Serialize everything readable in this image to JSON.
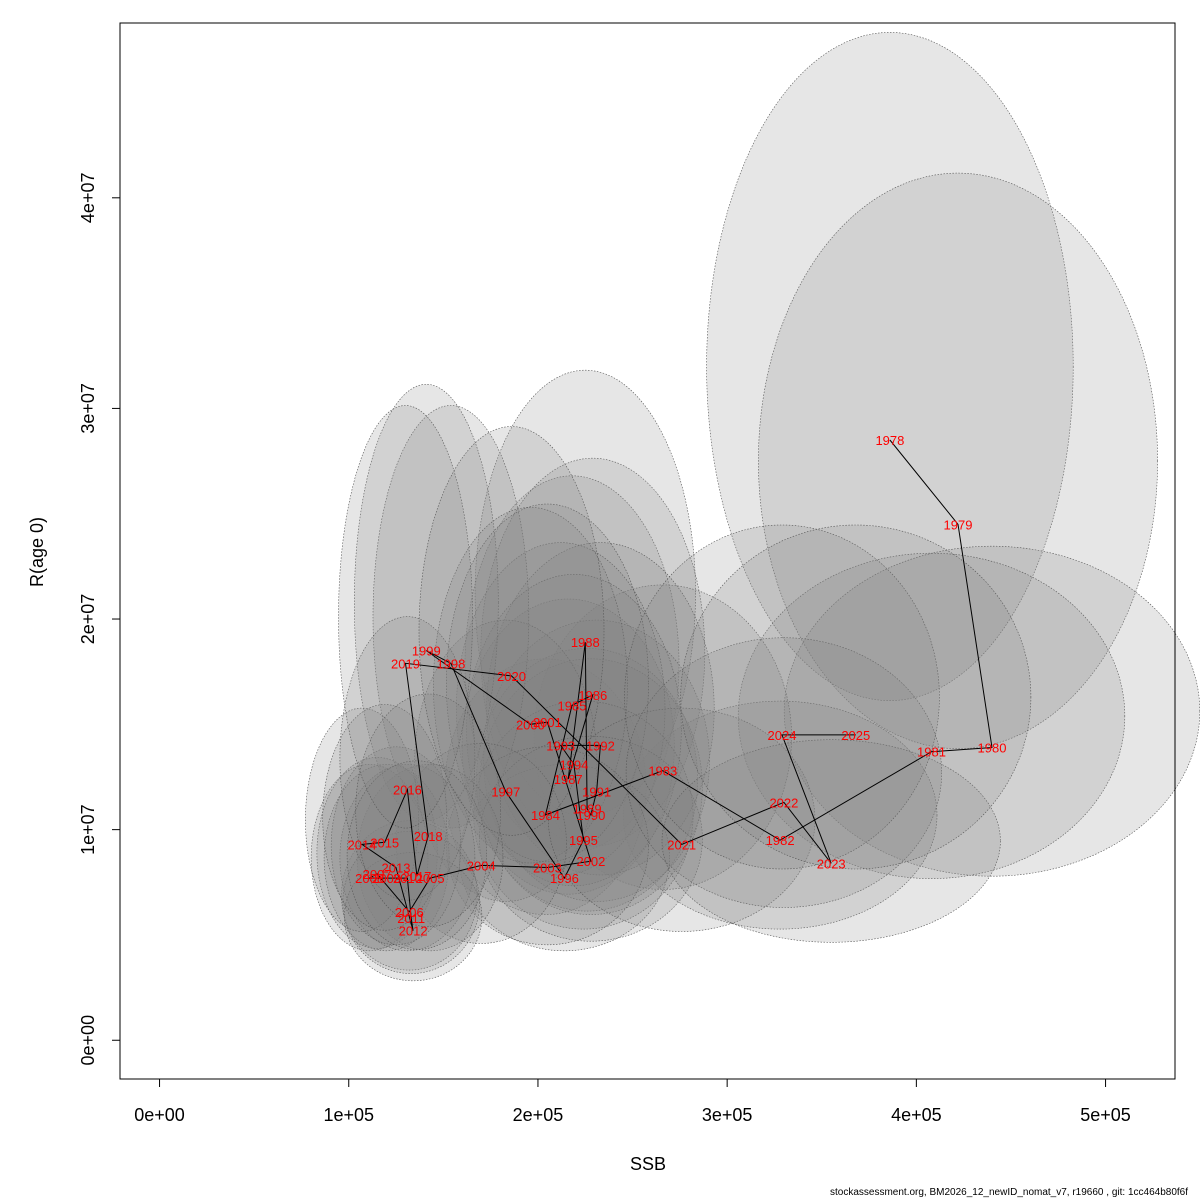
{
  "chart_data": {
    "type": "scatter",
    "xlabel": "SSB",
    "ylabel": "R(age 0)",
    "xlim": [
      -20900,
      536700
    ],
    "ylim": [
      -1840000,
      48300000
    ],
    "x_ticks": [
      0,
      100000,
      200000,
      300000,
      400000,
      500000
    ],
    "x_tick_labels": [
      "0e+00",
      "1e+05",
      "2e+05",
      "3e+05",
      "4e+05",
      "5e+05"
    ],
    "y_ticks": [
      0,
      10000000,
      20000000,
      30000000,
      40000000
    ],
    "y_tick_labels": [
      "0e+00",
      "1e+07",
      "2e+07",
      "3e+07",
      "4e+07"
    ],
    "grid": false,
    "point_color": "#ff0000",
    "line_color": "#000000",
    "ellipse_fill": "#808080",
    "ellipse_stroke": "#555555",
    "points": [
      {
        "year": "1978",
        "ssb": 386000,
        "rec": 28500000
      },
      {
        "year": "1979",
        "ssb": 422000,
        "rec": 24500000
      },
      {
        "year": "1980",
        "ssb": 440000,
        "rec": 13900000
      },
      {
        "year": "1981",
        "ssb": 408000,
        "rec": 13700000
      },
      {
        "year": "1982",
        "ssb": 328000,
        "rec": 9500000
      },
      {
        "year": "1983",
        "ssb": 266000,
        "rec": 12800000
      },
      {
        "year": "1984",
        "ssb": 204000,
        "rec": 10700000
      },
      {
        "year": "1985",
        "ssb": 218000,
        "rec": 15900000
      },
      {
        "year": "1986",
        "ssb": 229000,
        "rec": 16400000
      },
      {
        "year": "1987",
        "ssb": 216000,
        "rec": 12400000
      },
      {
        "year": "1988",
        "ssb": 225000,
        "rec": 18900000
      },
      {
        "year": "1989",
        "ssb": 226000,
        "rec": 11000000
      },
      {
        "year": "1990",
        "ssb": 228000,
        "rec": 10700000
      },
      {
        "year": "1991",
        "ssb": 231000,
        "rec": 11800000
      },
      {
        "year": "1992",
        "ssb": 233000,
        "rec": 14000000
      },
      {
        "year": "1993",
        "ssb": 212000,
        "rec": 14000000
      },
      {
        "year": "1994",
        "ssb": 219000,
        "rec": 13100000
      },
      {
        "year": "1995",
        "ssb": 224000,
        "rec": 9500000
      },
      {
        "year": "1996",
        "ssb": 214000,
        "rec": 7700000
      },
      {
        "year": "1997",
        "ssb": 183000,
        "rec": 11800000
      },
      {
        "year": "1998",
        "ssb": 154000,
        "rec": 17900000
      },
      {
        "year": "1999",
        "ssb": 141000,
        "rec": 18500000
      },
      {
        "year": "2000",
        "ssb": 196000,
        "rec": 15000000
      },
      {
        "year": "2001",
        "ssb": 205000,
        "rec": 15100000
      },
      {
        "year": "2002",
        "ssb": 228000,
        "rec": 8500000
      },
      {
        "year": "2003",
        "ssb": 205000,
        "rec": 8200000
      },
      {
        "year": "2004",
        "ssb": 170000,
        "rec": 8300000
      },
      {
        "year": "2005",
        "ssb": 143000,
        "rec": 7700000
      },
      {
        "year": "2006",
        "ssb": 132000,
        "rec": 6100000
      },
      {
        "year": "2007",
        "ssb": 115000,
        "rec": 7900000
      },
      {
        "year": "2008",
        "ssb": 111000,
        "rec": 7700000
      },
      {
        "year": "2009",
        "ssb": 120000,
        "rec": 7700000
      },
      {
        "year": "2010",
        "ssb": 131000,
        "rec": 7700000
      },
      {
        "year": "2011",
        "ssb": 133000,
        "rec": 5800000
      },
      {
        "year": "2012",
        "ssb": 134000,
        "rec": 5200000
      },
      {
        "year": "2013",
        "ssb": 125000,
        "rec": 8200000
      },
      {
        "year": "2014",
        "ssb": 107000,
        "rec": 9300000
      },
      {
        "year": "2015",
        "ssb": 119000,
        "rec": 9400000
      },
      {
        "year": "2016",
        "ssb": 131000,
        "rec": 11900000
      },
      {
        "year": "2017",
        "ssb": 136000,
        "rec": 7800000
      },
      {
        "year": "2018",
        "ssb": 142000,
        "rec": 9700000
      },
      {
        "year": "2019",
        "ssb": 130000,
        "rec": 17900000
      },
      {
        "year": "2020",
        "ssb": 186000,
        "rec": 17300000
      },
      {
        "year": "2021",
        "ssb": 276000,
        "rec": 9300000
      },
      {
        "year": "2022",
        "ssb": 330000,
        "rec": 11300000
      },
      {
        "year": "2023",
        "ssb": 355000,
        "rec": 8400000
      },
      {
        "year": "2024",
        "ssb": 329000,
        "rec": 14500000
      },
      {
        "year": "2025",
        "ssb": 368000,
        "rec": 14500000
      }
    ]
  },
  "footer": {
    "text": "stockassessment.org, BM2026_12_newID_nomat_v7, r19660 , git: 1cc464b80f6f"
  }
}
